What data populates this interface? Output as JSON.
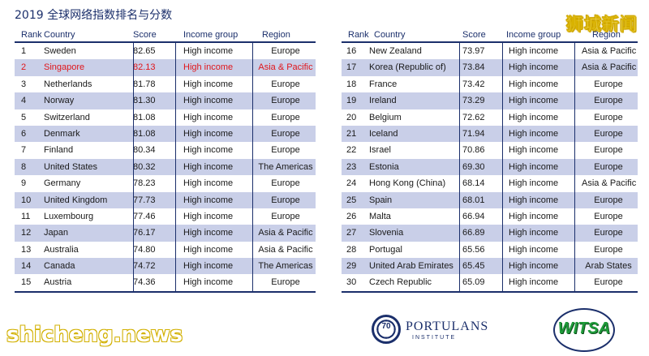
{
  "title": "2019 全球网络指数排名与分数",
  "watermark_top": "狮城新闻",
  "watermark_bottom": "shicheng.news",
  "columns": {
    "rank": "Rank",
    "country": "Country",
    "score": "Score",
    "income": "Income group",
    "region": "Region"
  },
  "left_rows": [
    {
      "rank": "1",
      "country": "Sweden",
      "score": "82.65",
      "income": "High income",
      "region": "Europe"
    },
    {
      "rank": "2",
      "country": "Singapore",
      "score": "82.13",
      "income": "High income",
      "region": "Asia & Pacific"
    },
    {
      "rank": "3",
      "country": "Netherlands",
      "score": "81.78",
      "income": "High income",
      "region": "Europe"
    },
    {
      "rank": "4",
      "country": "Norway",
      "score": "81.30",
      "income": "High income",
      "region": "Europe"
    },
    {
      "rank": "5",
      "country": "Switzerland",
      "score": "81.08",
      "income": "High income",
      "region": "Europe"
    },
    {
      "rank": "6",
      "country": "Denmark",
      "score": "81.08",
      "income": "High income",
      "region": "Europe"
    },
    {
      "rank": "7",
      "country": "Finland",
      "score": "80.34",
      "income": "High income",
      "region": "Europe"
    },
    {
      "rank": "8",
      "country": "United States",
      "score": "80.32",
      "income": "High income",
      "region": "The Americas"
    },
    {
      "rank": "9",
      "country": "Germany",
      "score": "78.23",
      "income": "High income",
      "region": "Europe"
    },
    {
      "rank": "10",
      "country": "United Kingdom",
      "score": "77.73",
      "income": "High income",
      "region": "Europe"
    },
    {
      "rank": "11",
      "country": "Luxembourg",
      "score": "77.46",
      "income": "High income",
      "region": "Europe"
    },
    {
      "rank": "12",
      "country": "Japan",
      "score": "76.17",
      "income": "High income",
      "region": "Asia & Pacific"
    },
    {
      "rank": "13",
      "country": "Australia",
      "score": "74.80",
      "income": "High income",
      "region": "Asia & Pacific"
    },
    {
      "rank": "14",
      "country": "Canada",
      "score": "74.72",
      "income": "High income",
      "region": "The Americas"
    },
    {
      "rank": "15",
      "country": "Austria",
      "score": "74.36",
      "income": "High income",
      "region": "Europe"
    }
  ],
  "right_rows": [
    {
      "rank": "16",
      "country": "New Zealand",
      "score": "73.97",
      "income": "High income",
      "region": "Asia & Pacific"
    },
    {
      "rank": "17",
      "country": "Korea (Republic of)",
      "score": "73.84",
      "income": "High income",
      "region": "Asia & Pacific"
    },
    {
      "rank": "18",
      "country": "France",
      "score": "73.42",
      "income": "High income",
      "region": "Europe"
    },
    {
      "rank": "19",
      "country": "Ireland",
      "score": "73.29",
      "income": "High income",
      "region": "Europe"
    },
    {
      "rank": "20",
      "country": "Belgium",
      "score": "72.62",
      "income": "High income",
      "region": "Europe"
    },
    {
      "rank": "21",
      "country": "Iceland",
      "score": "71.94",
      "income": "High income",
      "region": "Europe"
    },
    {
      "rank": "22",
      "country": "Israel",
      "score": "70.86",
      "income": "High income",
      "region": "Europe"
    },
    {
      "rank": "23",
      "country": "Estonia",
      "score": "69.30",
      "income": "High income",
      "region": "Europe"
    },
    {
      "rank": "24",
      "country": "Hong Kong (China)",
      "score": "68.14",
      "income": "High income",
      "region": "Asia & Pacific"
    },
    {
      "rank": "25",
      "country": "Spain",
      "score": "68.01",
      "income": "High income",
      "region": "Europe"
    },
    {
      "rank": "26",
      "country": "Malta",
      "score": "66.94",
      "income": "High income",
      "region": "Europe"
    },
    {
      "rank": "27",
      "country": "Slovenia",
      "score": "66.89",
      "income": "High income",
      "region": "Europe"
    },
    {
      "rank": "28",
      "country": "Portugal",
      "score": "65.56",
      "income": "High income",
      "region": "Europe"
    },
    {
      "rank": "29",
      "country": "United Arab Emirates",
      "score": "65.45",
      "income": "High income",
      "region": "Arab States"
    },
    {
      "rank": "30",
      "country": "Czech Republic",
      "score": "65.09",
      "income": "High income",
      "region": "Europe"
    }
  ],
  "highlight_color": "#e0161b",
  "logos": {
    "portulans_seal": "70",
    "portulans_name": "PORTULANS",
    "portulans_sub": "INSTITUTE",
    "witsa": "WITSA"
  }
}
